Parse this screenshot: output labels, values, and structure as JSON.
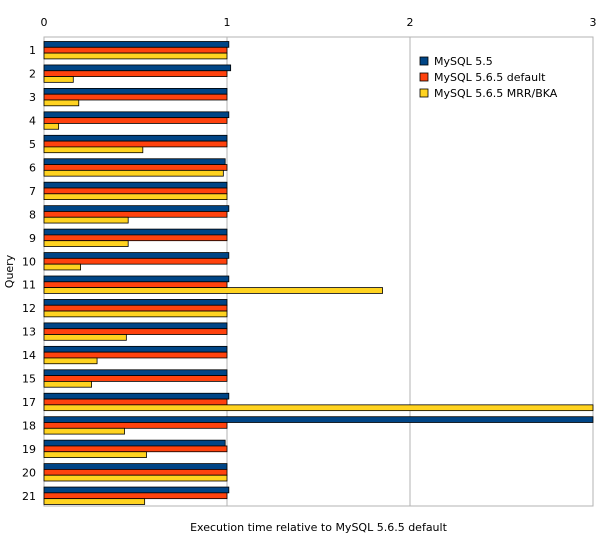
{
  "chart_data": {
    "type": "bar",
    "orientation": "horizontal",
    "title": "",
    "xlabel": "Execution time relative to MySQL 5.6.5 default",
    "ylabel": "Query",
    "xlim": [
      0,
      3
    ],
    "x_ticks": [
      "0",
      "1",
      "2",
      "3"
    ],
    "grid": "vertical",
    "legend_position": "top-right",
    "categories": [
      "1",
      "2",
      "3",
      "4",
      "5",
      "6",
      "7",
      "8",
      "9",
      "10",
      "11",
      "12",
      "13",
      "14",
      "15",
      "17",
      "18",
      "19",
      "20",
      "21"
    ],
    "series": [
      {
        "name": "MySQL 5.5",
        "color": "#004586",
        "values": [
          1.01,
          1.02,
          1.0,
          1.01,
          1.0,
          0.99,
          1.0,
          1.01,
          1.0,
          1.01,
          1.01,
          1.0,
          1.0,
          1.0,
          1.0,
          1.01,
          3.0,
          0.99,
          1.0,
          1.01
        ]
      },
      {
        "name": "MySQL 5.6.5 default",
        "color": "#ff420e",
        "values": [
          1.0,
          1.0,
          1.0,
          1.0,
          1.0,
          1.0,
          1.0,
          1.0,
          1.0,
          1.0,
          1.0,
          1.0,
          1.0,
          1.0,
          1.0,
          1.0,
          1.0,
          1.0,
          1.0,
          1.0
        ]
      },
      {
        "name": "MySQL 5.6.5 MRR/BKA",
        "color": "#ffd320",
        "values": [
          1.0,
          0.16,
          0.19,
          0.08,
          0.54,
          0.98,
          1.0,
          0.46,
          0.46,
          0.2,
          1.85,
          1.0,
          0.45,
          0.29,
          0.26,
          3.0,
          0.44,
          0.56,
          1.0,
          0.55
        ]
      }
    ]
  }
}
